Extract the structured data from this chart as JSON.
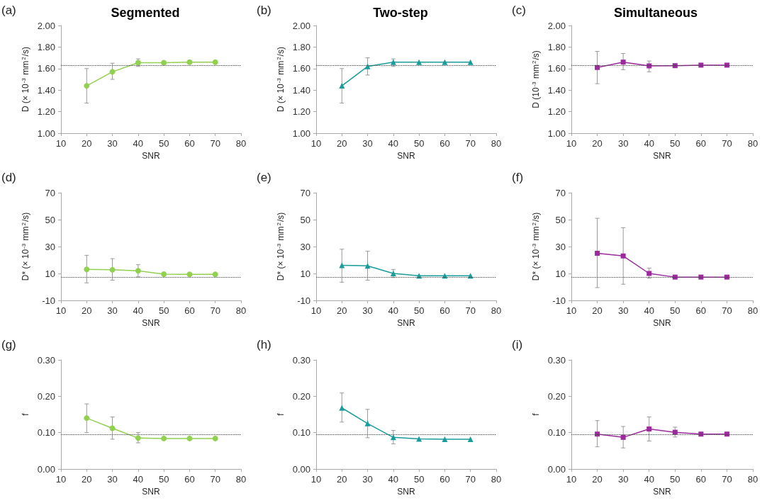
{
  "chart_data": [
    {
      "type": "line",
      "title": "Segmented",
      "annotations": [
        "(a)"
      ],
      "xlabel": "SNR",
      "ylabel": "D (× 10$^{-3}$ mm$^{2}$/s)",
      "x": [
        20,
        30,
        40,
        50,
        60,
        70
      ],
      "marker": "circle",
      "line_style": "solid",
      "grid": false,
      "series": [
        {
          "color": "#92d050",
          "values": [
            1.44,
            1.57,
            1.655,
            1.655,
            1.66,
            1.66
          ],
          "errors": [
            [
              1.28,
              1.6
            ],
            [
              1.5,
              1.65
            ],
            [
              1.62,
              1.69
            ],
            null,
            null,
            null
          ]
        }
      ],
      "xlim": [
        10,
        80
      ],
      "xticks": [
        10,
        20,
        30,
        40,
        50,
        60,
        70,
        80
      ],
      "ylim": [
        1,
        2
      ],
      "yticks": [
        {
          "value": 1,
          "label": "1.00"
        },
        {
          "value": 1.2,
          "label": "1.20"
        },
        {
          "value": 1.4,
          "label": "1.40"
        },
        {
          "value": 1.6,
          "label": "1.60"
        },
        {
          "value": 1.8,
          "label": "1.80"
        },
        {
          "value": 2,
          "label": "2.00"
        }
      ],
      "ref_lines": [
        {
          "axis": "y",
          "value": 1.63,
          "line_style": "dotted",
          "color": "#404040"
        }
      ]
    },
    {
      "type": "line",
      "title": "Two-step",
      "annotations": [
        "(b)"
      ],
      "xlabel": "SNR",
      "ylabel": "D (× 10$^{-3}$ mm$^{2}$/s)",
      "x": [
        20,
        30,
        40,
        50,
        60,
        70
      ],
      "marker": "triangle",
      "line_style": "solid",
      "grid": false,
      "series": [
        {
          "color": "#1a9c9c",
          "values": [
            1.44,
            1.62,
            1.66,
            1.66,
            1.66,
            1.66
          ],
          "errors": [
            [
              1.28,
              1.6
            ],
            [
              1.54,
              1.7
            ],
            [
              1.62,
              1.69
            ],
            null,
            null,
            null
          ]
        }
      ],
      "xlim": [
        10,
        80
      ],
      "xticks": [
        10,
        20,
        30,
        40,
        50,
        60,
        70,
        80
      ],
      "ylim": [
        1,
        2
      ],
      "yticks": [
        {
          "value": 1,
          "label": "1.00"
        },
        {
          "value": 1.2,
          "label": "1.20"
        },
        {
          "value": 1.4,
          "label": "1.40"
        },
        {
          "value": 1.6,
          "label": "1.60"
        },
        {
          "value": 1.8,
          "label": "1.80"
        },
        {
          "value": 2,
          "label": "2.00"
        }
      ],
      "ref_lines": [
        {
          "axis": "y",
          "value": 1.63,
          "line_style": "dotted",
          "color": "#404040"
        }
      ]
    },
    {
      "type": "line",
      "title": "Simultaneous",
      "annotations": [
        "(c)"
      ],
      "xlabel": "SNR",
      "ylabel": "D (10$^{-3}$ mm$^{2}$/s)",
      "x": [
        20,
        30,
        40,
        50,
        60,
        70
      ],
      "marker": "square",
      "line_style": "solid",
      "grid": false,
      "series": [
        {
          "color": "#9c2a9e",
          "values": [
            1.61,
            1.66,
            1.625,
            1.627,
            1.632,
            1.632
          ],
          "errors": [
            [
              1.46,
              1.76
            ],
            [
              1.59,
              1.74
            ],
            [
              1.57,
              1.67
            ],
            null,
            null,
            null
          ]
        }
      ],
      "xlim": [
        10,
        80
      ],
      "xticks": [
        10,
        20,
        30,
        40,
        50,
        60,
        70,
        80
      ],
      "ylim": [
        1,
        2
      ],
      "yticks": [
        {
          "value": 1,
          "label": "1.00"
        },
        {
          "value": 1.2,
          "label": "1.20"
        },
        {
          "value": 1.4,
          "label": "1.40"
        },
        {
          "value": 1.6,
          "label": "1.60"
        },
        {
          "value": 1.8,
          "label": "1.80"
        },
        {
          "value": 2,
          "label": "2.00"
        }
      ],
      "ref_lines": [
        {
          "axis": "y",
          "value": 1.63,
          "line_style": "dotted",
          "color": "#404040"
        }
      ]
    },
    {
      "type": "line",
      "annotations": [
        "(d)"
      ],
      "xlabel": "SNR",
      "ylabel": "D* (× 10$^{-3}$ mm$^{2}$/s)",
      "x": [
        20,
        30,
        40,
        50,
        60,
        70
      ],
      "marker": "circle",
      "line_style": "solid",
      "grid": false,
      "series": [
        {
          "color": "#92d050",
          "values": [
            13,
            12.7,
            12,
            9.5,
            9.3,
            9.3
          ],
          "errors": [
            [
              3,
              23.5
            ],
            [
              5,
              21
            ],
            [
              7.5,
              16.5
            ],
            null,
            null,
            null
          ]
        }
      ],
      "xlim": [
        10,
        80
      ],
      "xticks": [
        10,
        20,
        30,
        40,
        50,
        60,
        70,
        80
      ],
      "ylim": [
        -10,
        70
      ],
      "yticks": [
        -10,
        10,
        30,
        50,
        70
      ],
      "ref_lines": [
        {
          "axis": "y",
          "value": 7,
          "line_style": "dotted",
          "color": "#404040"
        }
      ]
    },
    {
      "type": "line",
      "annotations": [
        "(e)"
      ],
      "xlabel": "SNR",
      "ylabel": "D* (× 10$^{-3}$ mm$^{2}$/s)",
      "x": [
        20,
        30,
        40,
        50,
        60,
        70
      ],
      "marker": "triangle",
      "line_style": "solid",
      "grid": false,
      "series": [
        {
          "color": "#1a9c9c",
          "values": [
            16,
            15.7,
            10,
            8.3,
            8.3,
            8.3
          ],
          "errors": [
            [
              3.5,
              28
            ],
            [
              5,
              26.5
            ],
            [
              7,
              13
            ],
            null,
            null,
            null
          ]
        }
      ],
      "xlim": [
        10,
        80
      ],
      "xticks": [
        10,
        20,
        30,
        40,
        50,
        60,
        70,
        80
      ],
      "ylim": [
        -10,
        70
      ],
      "yticks": [
        -10,
        10,
        30,
        50,
        70
      ],
      "ref_lines": [
        {
          "axis": "y",
          "value": 7,
          "line_style": "dotted",
          "color": "#404040"
        }
      ]
    },
    {
      "type": "line",
      "annotations": [
        "(f)"
      ],
      "xlabel": "SNR",
      "ylabel": "D* (× 10$^{-3}$ mm$^{2}$/s)",
      "x": [
        20,
        30,
        40,
        50,
        60,
        70
      ],
      "marker": "square",
      "line_style": "solid",
      "grid": false,
      "series": [
        {
          "color": "#9c2a9e",
          "values": [
            25,
            23,
            10,
            7.3,
            7.3,
            7.3
          ],
          "errors": [
            [
              -0.5,
              51
            ],
            [
              2,
              44
            ],
            [
              6.5,
              14
            ],
            null,
            null,
            null
          ]
        }
      ],
      "xlim": [
        10,
        80
      ],
      "xticks": [
        10,
        20,
        30,
        40,
        50,
        60,
        70,
        80
      ],
      "ylim": [
        -10,
        70
      ],
      "yticks": [
        -10,
        10,
        30,
        50,
        70
      ],
      "ref_lines": [
        {
          "axis": "y",
          "value": 7,
          "line_style": "dotted",
          "color": "#404040"
        }
      ]
    },
    {
      "type": "line",
      "annotations": [
        "(g)"
      ],
      "xlabel": "SNR",
      "ylabel": "f",
      "x": [
        20,
        30,
        40,
        50,
        60,
        70
      ],
      "marker": "circle",
      "line_style": "solid",
      "grid": false,
      "series": [
        {
          "color": "#92d050",
          "values": [
            0.14,
            0.112,
            0.085,
            0.084,
            0.084,
            0.084
          ],
          "errors": [
            [
              0.1,
              0.179
            ],
            [
              0.082,
              0.143
            ],
            [
              0.072,
              0.1
            ],
            null,
            null,
            null
          ]
        }
      ],
      "xlim": [
        10,
        80
      ],
      "xticks": [
        10,
        20,
        30,
        40,
        50,
        60,
        70,
        80
      ],
      "ylim": [
        0,
        0.3
      ],
      "yticks": [
        {
          "value": 0,
          "label": "0.00"
        },
        {
          "value": 0.1,
          "label": "0.10"
        },
        {
          "value": 0.2,
          "label": "0.20"
        },
        {
          "value": 0.3,
          "label": "0.30"
        }
      ],
      "ref_lines": [
        {
          "axis": "y",
          "value": 0.095,
          "line_style": "dotted",
          "color": "#404040"
        }
      ]
    },
    {
      "type": "line",
      "annotations": [
        "(h)"
      ],
      "xlabel": "SNR",
      "ylabel": "f",
      "x": [
        20,
        30,
        40,
        50,
        60,
        70
      ],
      "marker": "triangle",
      "line_style": "solid",
      "grid": false,
      "series": [
        {
          "color": "#1a9c9c",
          "values": [
            0.168,
            0.125,
            0.087,
            0.083,
            0.082,
            0.082
          ],
          "errors": [
            [
              0.129,
              0.209
            ],
            [
              0.086,
              0.164
            ],
            [
              0.069,
              0.106
            ],
            null,
            null,
            null
          ]
        }
      ],
      "xlim": [
        10,
        80
      ],
      "xticks": [
        10,
        20,
        30,
        40,
        50,
        60,
        70,
        80
      ],
      "ylim": [
        0,
        0.3
      ],
      "yticks": [
        {
          "value": 0,
          "label": "0.00"
        },
        {
          "value": 0.1,
          "label": "0.10"
        },
        {
          "value": 0.2,
          "label": "0.20"
        },
        {
          "value": 0.3,
          "label": "0.30"
        }
      ],
      "ref_lines": [
        {
          "axis": "y",
          "value": 0.095,
          "line_style": "dotted",
          "color": "#404040"
        }
      ]
    },
    {
      "type": "line",
      "annotations": [
        "(i)"
      ],
      "xlabel": "SNR",
      "ylabel": "f",
      "x": [
        20,
        30,
        40,
        50,
        60,
        70
      ],
      "marker": "square",
      "line_style": "solid",
      "grid": false,
      "series": [
        {
          "color": "#9c2a9e",
          "values": [
            0.096,
            0.087,
            0.11,
            0.101,
            0.096,
            0.096
          ],
          "errors": [
            [
              0.061,
              0.133
            ],
            [
              0.058,
              0.117
            ],
            [
              0.077,
              0.143
            ],
            [
              0.088,
              0.115
            ],
            null,
            null
          ]
        }
      ],
      "xlim": [
        10,
        80
      ],
      "xticks": [
        10,
        20,
        30,
        40,
        50,
        60,
        70,
        80
      ],
      "ylim": [
        0,
        0.3
      ],
      "yticks": [
        {
          "value": 0,
          "label": "0.00"
        },
        {
          "value": 0.1,
          "label": "0.10"
        },
        {
          "value": 0.2,
          "label": "0.20"
        },
        {
          "value": 0.3,
          "label": "0.30"
        }
      ],
      "ref_lines": [
        {
          "axis": "y",
          "value": 0.095,
          "line_style": "dotted",
          "color": "#404040"
        }
      ]
    }
  ]
}
